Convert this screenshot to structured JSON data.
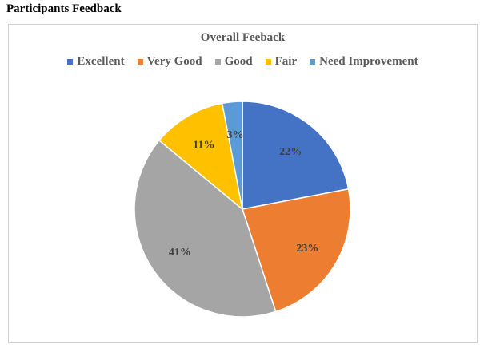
{
  "page": {
    "heading": "Participants Feedback"
  },
  "chart_data": {
    "type": "pie",
    "title": "Overall Feeback",
    "legend_position": "top",
    "categories": [
      "Excellent",
      "Very Good",
      "Good",
      "Fair",
      "Need Improvement"
    ],
    "values": [
      22,
      23,
      41,
      11,
      3
    ],
    "labels": [
      "22%",
      "23%",
      "41%",
      "11%",
      "3%"
    ],
    "colors": [
      "#4472C4",
      "#ED7D31",
      "#A5A5A5",
      "#FFC000",
      "#5B9BD5"
    ]
  }
}
